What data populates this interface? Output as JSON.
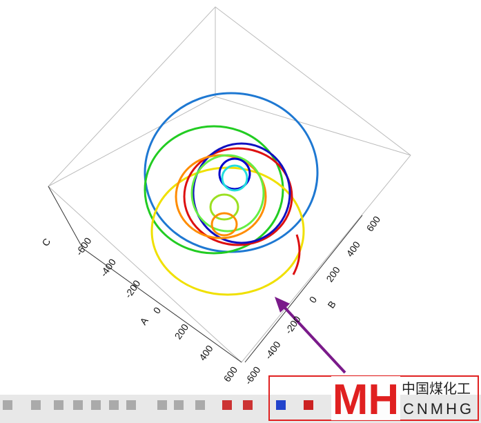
{
  "axes": {
    "a": {
      "label": "A",
      "ticks": [
        "-600",
        "-400",
        "-200",
        "0",
        "200",
        "400",
        "600"
      ]
    },
    "b": {
      "label": "B",
      "ticks": [
        "-600",
        "-400",
        "-200",
        "0",
        "200",
        "400",
        "600"
      ]
    },
    "c": {
      "label": "C"
    }
  },
  "watermark": {
    "logo": "MH",
    "name": "中国煤化工",
    "code": "CNMHG"
  }
}
